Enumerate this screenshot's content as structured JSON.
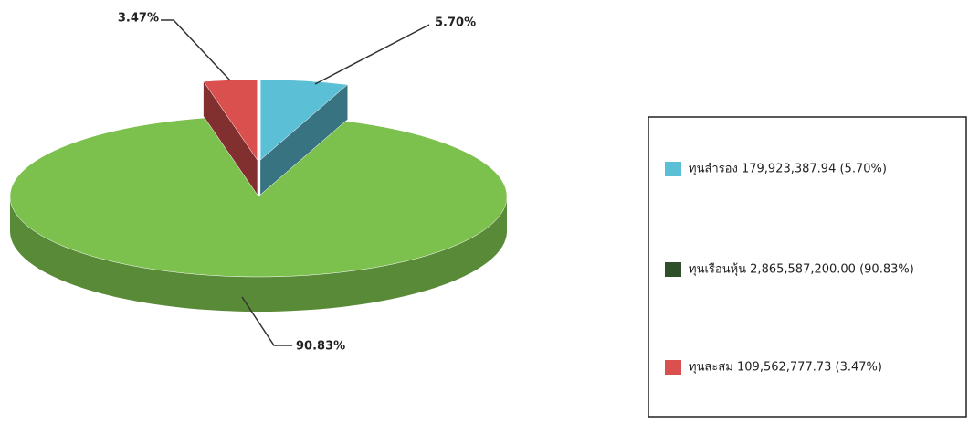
{
  "chart_data": {
    "type": "pie3d",
    "categories": [
      "ทุนสำรอง",
      "ทุนเรือนหุ้น",
      "ทุนสะสม"
    ],
    "values": [
      5.7,
      90.83,
      3.47
    ],
    "value_labels": [
      "5.70%",
      "90.83%",
      "3.47%"
    ],
    "legend_labels": [
      "ทุนสำรอง 179,923,387.94 (5.70%)",
      "ทุนเรือนหุ้น 2,865,587,200.00 (90.83%)",
      "ทุนสะสม 109,562,777.73 (3.47%)"
    ],
    "colors": [
      "#5bbfd6",
      "#7cc04e",
      "#d9504f"
    ],
    "exploded": [
      true,
      false,
      true
    ]
  }
}
